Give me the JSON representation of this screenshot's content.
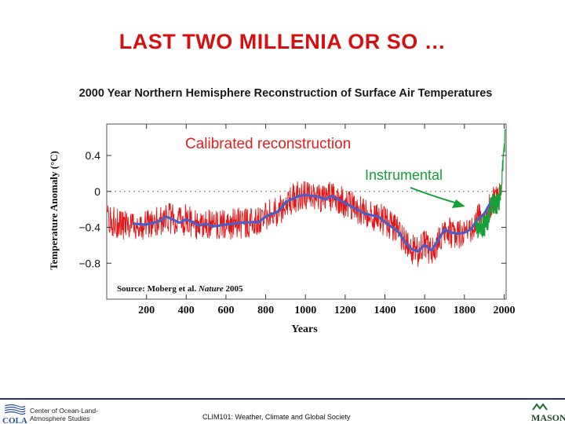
{
  "slide": {
    "title": "LAST TWO MILLENIA OR SO …"
  },
  "footer": {
    "org_line1": "Center of Ocean-Land-",
    "org_line2": "Atmosphere Studies",
    "course": "CLIM101: Weather, Climate and Global Society",
    "logo_left": "COLA",
    "logo_right": "MASON"
  },
  "colors": {
    "title": "#d51010",
    "reconstruction": "#e01818",
    "smoothed": "#4a5ec8",
    "instrumental": "#13a138",
    "annotation_red": "#e02020",
    "annotation_green": "#13a138"
  },
  "chart_data": {
    "type": "line",
    "title": "2000 Year Northern Hemisphere Reconstruction of Surface Air Temperatures",
    "xlabel": "Years",
    "ylabel": "Temperature Anomaly (°C)",
    "xlim": [
      0,
      2010
    ],
    "ylim": [
      -1.2,
      0.75
    ],
    "x_ticks": [
      "200",
      "400",
      "600",
      "800",
      "1000",
      "1200",
      "1400",
      "1600",
      "1800",
      "2000"
    ],
    "y_ticks": [
      "0.4",
      "0",
      "−0.4",
      "−0.8"
    ],
    "grid": false,
    "annotations": {
      "reconstruction_label": "Calibrated reconstruction",
      "instrumental_label": "Instrumental",
      "source_prefix": "Source: Moberg et al. ",
      "source_journal": "Nature",
      "source_year": " 2005"
    },
    "series": [
      {
        "name": "Calibrated reconstruction",
        "kind": "annual",
        "range": [
          0,
          1979
        ],
        "anchors": [
          [
            0,
            -0.32
          ],
          [
            100,
            -0.38
          ],
          [
            133,
            -0.36
          ],
          [
            200,
            -0.37
          ],
          [
            267,
            -0.33
          ],
          [
            300,
            -0.28
          ],
          [
            367,
            -0.35
          ],
          [
            400,
            -0.31
          ],
          [
            467,
            -0.38
          ],
          [
            500,
            -0.36
          ],
          [
            533,
            -0.39
          ],
          [
            600,
            -0.37
          ],
          [
            667,
            -0.35
          ],
          [
            700,
            -0.35
          ],
          [
            767,
            -0.34
          ],
          [
            800,
            -0.28
          ],
          [
            867,
            -0.22
          ],
          [
            900,
            -0.12
          ],
          [
            967,
            -0.05
          ],
          [
            1000,
            -0.04
          ],
          [
            1067,
            -0.06
          ],
          [
            1100,
            -0.09
          ],
          [
            1133,
            -0.05
          ],
          [
            1200,
            -0.13
          ],
          [
            1267,
            -0.21
          ],
          [
            1300,
            -0.25
          ],
          [
            1367,
            -0.28
          ],
          [
            1400,
            -0.34
          ],
          [
            1467,
            -0.45
          ],
          [
            1500,
            -0.56
          ],
          [
            1533,
            -0.64
          ],
          [
            1567,
            -0.67
          ],
          [
            1600,
            -0.59
          ],
          [
            1633,
            -0.66
          ],
          [
            1667,
            -0.55
          ],
          [
            1700,
            -0.42
          ],
          [
            1733,
            -0.46
          ],
          [
            1767,
            -0.47
          ],
          [
            1800,
            -0.46
          ],
          [
            1833,
            -0.42
          ],
          [
            1867,
            -0.31
          ],
          [
            1900,
            -0.25
          ],
          [
            1933,
            -0.12
          ],
          [
            1979,
            -0.04
          ]
        ],
        "noise": 0.17
      },
      {
        "name": "smoothed",
        "kind": "smooth",
        "range": [
          133,
          1979
        ],
        "anchors": [
          [
            133,
            -0.36
          ],
          [
            200,
            -0.37
          ],
          [
            267,
            -0.33
          ],
          [
            300,
            -0.28
          ],
          [
            367,
            -0.35
          ],
          [
            400,
            -0.31
          ],
          [
            467,
            -0.38
          ],
          [
            500,
            -0.36
          ],
          [
            533,
            -0.39
          ],
          [
            600,
            -0.37
          ],
          [
            667,
            -0.35
          ],
          [
            767,
            -0.34
          ],
          [
            800,
            -0.28
          ],
          [
            867,
            -0.22
          ],
          [
            900,
            -0.12
          ],
          [
            967,
            -0.05
          ],
          [
            1000,
            -0.04
          ],
          [
            1067,
            -0.06
          ],
          [
            1100,
            -0.09
          ],
          [
            1133,
            -0.05
          ],
          [
            1200,
            -0.13
          ],
          [
            1267,
            -0.21
          ],
          [
            1300,
            -0.25
          ],
          [
            1367,
            -0.28
          ],
          [
            1400,
            -0.34
          ],
          [
            1467,
            -0.45
          ],
          [
            1500,
            -0.56
          ],
          [
            1533,
            -0.64
          ],
          [
            1567,
            -0.67
          ],
          [
            1600,
            -0.59
          ],
          [
            1633,
            -0.66
          ],
          [
            1667,
            -0.55
          ],
          [
            1700,
            -0.42
          ],
          [
            1733,
            -0.46
          ],
          [
            1767,
            -0.47
          ],
          [
            1800,
            -0.46
          ],
          [
            1833,
            -0.42
          ],
          [
            1867,
            -0.31
          ],
          [
            1900,
            -0.25
          ],
          [
            1933,
            -0.12
          ],
          [
            1979,
            -0.04
          ]
        ]
      },
      {
        "name": "Instrumental",
        "kind": "annual",
        "range": [
          1856,
          2004
        ],
        "anchors": [
          [
            1856,
            -0.42
          ],
          [
            1880,
            -0.38
          ],
          [
            1900,
            -0.4
          ],
          [
            1920,
            -0.3
          ],
          [
            1940,
            -0.12
          ],
          [
            1960,
            -0.14
          ],
          [
            1975,
            -0.1
          ],
          [
            1990,
            0.18
          ],
          [
            2004,
            0.6
          ]
        ],
        "noise": 0.12
      }
    ]
  }
}
